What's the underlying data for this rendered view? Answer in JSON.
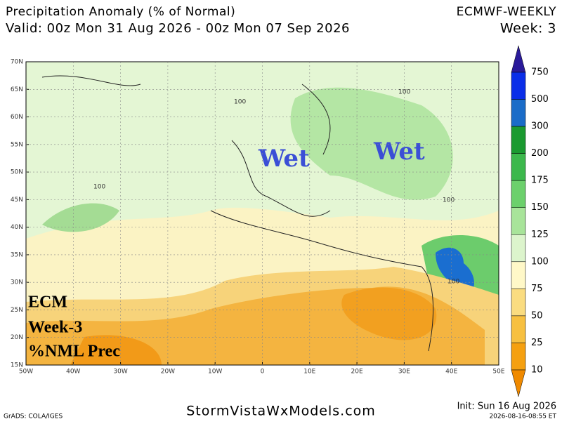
{
  "header": {
    "title": "Precipitation Anomaly (% of Normal)",
    "valid": "Valid: 00z Mon 31 Aug 2026 - 00z Mon 07 Sep 2026",
    "model": "ECMWF-WEEKLY",
    "week": "Week: 3"
  },
  "map": {
    "lat_labels": [
      "70N",
      "65N",
      "60N",
      "55N",
      "50N",
      "45N",
      "40N",
      "35N",
      "30N",
      "25N",
      "20N",
      "15N"
    ],
    "lon_labels": [
      "50W",
      "40W",
      "30W",
      "20W",
      "10W",
      "0",
      "10E",
      "20E",
      "30E",
      "40E",
      "50E"
    ],
    "annotations": [
      "Wet",
      "Wet"
    ],
    "overlay": [
      "ECM",
      "Week-3",
      "%NML Prec"
    ],
    "contour_labels": [
      "100",
      "100",
      "100",
      "100",
      "100"
    ]
  },
  "colorbar": {
    "labels": [
      "750",
      "500",
      "300",
      "200",
      "175",
      "150",
      "125",
      "100",
      "75",
      "50",
      "25",
      "10"
    ]
  },
  "footer": {
    "credit": "GrADS: COLA/IGES",
    "site": "StormVistaWxModels.com",
    "init": "Init: Sun 16 Aug 2026",
    "timestamp": "2026-08-16-08:55 ET"
  }
}
